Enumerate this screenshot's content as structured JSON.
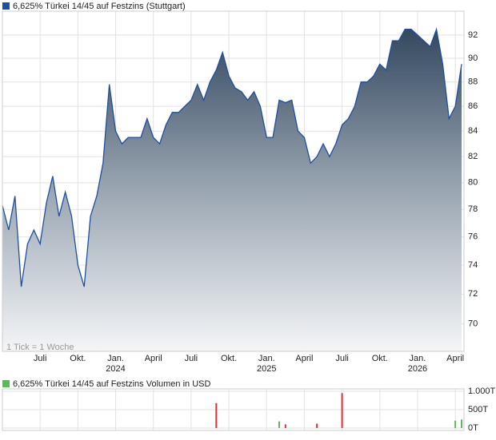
{
  "chart_data": [
    {
      "type": "area",
      "title": "6,625% Türkei 14/45 auf Festzins (Stuttgart)",
      "annotation": "1 Tick = 1 Woche",
      "categories": [
        null,
        null,
        null,
        null,
        null,
        null,
        "Juli",
        null,
        null,
        null,
        null,
        null,
        "Okt.",
        null,
        null,
        null,
        null,
        null,
        "Jan. 2024",
        null,
        null,
        null,
        null,
        null,
        "April",
        null,
        null,
        null,
        null,
        null,
        "Juli",
        null,
        null,
        null,
        null,
        null,
        "Okt.",
        null,
        null,
        null,
        null,
        null,
        "Jan. 2025",
        null,
        null,
        null,
        null,
        null,
        "April",
        null,
        null,
        null,
        null,
        null,
        "Juli",
        null,
        null,
        null,
        null,
        null,
        "Okt.",
        null,
        null,
        null,
        null,
        null,
        "Jan. 2026",
        null,
        null,
        null,
        null,
        null,
        "April",
        null
      ],
      "values": [
        78.3,
        76.5,
        79.0,
        72.5,
        75.5,
        76.5,
        75.5,
        78.5,
        80.5,
        77.5,
        79.3,
        77.5,
        74,
        72.5,
        77.5,
        79,
        81.5,
        87.8,
        84,
        83,
        83.5,
        83.5,
        83.5,
        85,
        83.5,
        83,
        84.5,
        85.5,
        85.5,
        86,
        86.5,
        87.8,
        86.5,
        88,
        89,
        90.5,
        88.5,
        87.5,
        87.2,
        86.5,
        87.2,
        86,
        83.5,
        83.5,
        86.5,
        86.3,
        86.5,
        84,
        83.5,
        81.5,
        82,
        83,
        82,
        83,
        84.5,
        85,
        86,
        88,
        88,
        88.5,
        89.5,
        89,
        91.5,
        91.5,
        92.5,
        92.5,
        92,
        91.5,
        91,
        92.5,
        89.5,
        85,
        86,
        89.5
      ],
      "color": "#1f4f9f",
      "ylim": [
        68.2,
        94.1
      ],
      "yticks": [
        70,
        72,
        74,
        76,
        78,
        80,
        82,
        84,
        86,
        88,
        90,
        92
      ],
      "log": true,
      "grid": true
    },
    {
      "type": "bar",
      "title": "6,625% Türkei 14/45 auf Festzins Volumen in USD",
      "color": "#5cb85c",
      "values": [
        null,
        null,
        null,
        null,
        null,
        null,
        null,
        null,
        null,
        null,
        null,
        null,
        null,
        null,
        null,
        null,
        null,
        null,
        null,
        null,
        null,
        null,
        null,
        null,
        null,
        null,
        null,
        null,
        null,
        null,
        null,
        null,
        null,
        null,
        680,
        null,
        null,
        null,
        null,
        null,
        null,
        null,
        null,
        null,
        180,
        100,
        null,
        null,
        null,
        null,
        120,
        null,
        null,
        null,
        950,
        null,
        null,
        null,
        null,
        null,
        null,
        null,
        null,
        null,
        null,
        null,
        null,
        null,
        null,
        null,
        null,
        null,
        200,
        230
      ],
      "colors": [
        null,
        null,
        null,
        null,
        null,
        null,
        null,
        null,
        null,
        null,
        null,
        null,
        null,
        null,
        null,
        null,
        null,
        null,
        null,
        null,
        null,
        null,
        null,
        null,
        null,
        null,
        null,
        null,
        null,
        null,
        null,
        null,
        null,
        null,
        "#e03030",
        null,
        null,
        null,
        null,
        null,
        null,
        null,
        null,
        null,
        "#5cb85c",
        "#e03030",
        null,
        null,
        null,
        null,
        "#e03030",
        null,
        null,
        null,
        "#e03030",
        null,
        null,
        null,
        null,
        null,
        null,
        null,
        null,
        null,
        null,
        null,
        null,
        null,
        null,
        null,
        null,
        null,
        "#5cb85c",
        "#5cb85c"
      ],
      "ylim": [
        0,
        1000
      ],
      "yticks": [
        {
          "value": 1000,
          "label": "1.000T"
        },
        {
          "value": 500,
          "label": "500T"
        },
        {
          "value": 0,
          "label": "0T"
        }
      ],
      "grid": true
    }
  ]
}
